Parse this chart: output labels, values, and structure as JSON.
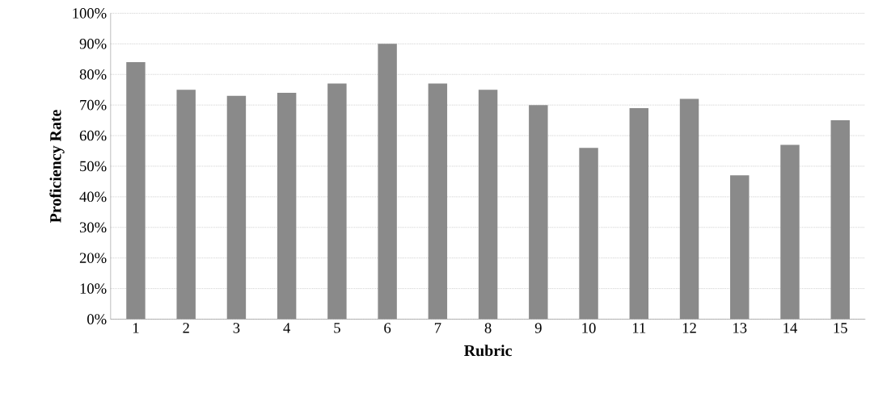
{
  "chart_data": {
    "type": "bar",
    "xlabel": "Rubric",
    "ylabel": "Proficiency Rate",
    "categories": [
      "1",
      "2",
      "3",
      "4",
      "5",
      "6",
      "7",
      "8",
      "9",
      "10",
      "11",
      "12",
      "13",
      "14",
      "15"
    ],
    "values": [
      84,
      75,
      73,
      74,
      77,
      90,
      77,
      75,
      70,
      56,
      69,
      72,
      47,
      57,
      65
    ],
    "color": "#8a8a8a",
    "ylim": [
      0,
      100
    ],
    "yticks": [
      {
        "value": 0,
        "label": "0%"
      },
      {
        "value": 10,
        "label": "10%"
      },
      {
        "value": 20,
        "label": "20%"
      },
      {
        "value": 30,
        "label": "30%"
      },
      {
        "value": 40,
        "label": "40%"
      },
      {
        "value": 50,
        "label": "50%"
      },
      {
        "value": 60,
        "label": "60%"
      },
      {
        "value": 70,
        "label": "70%"
      },
      {
        "value": 80,
        "label": "80%"
      },
      {
        "value": 90,
        "label": "90%"
      },
      {
        "value": 100,
        "label": "100%"
      }
    ],
    "grid": "y"
  }
}
